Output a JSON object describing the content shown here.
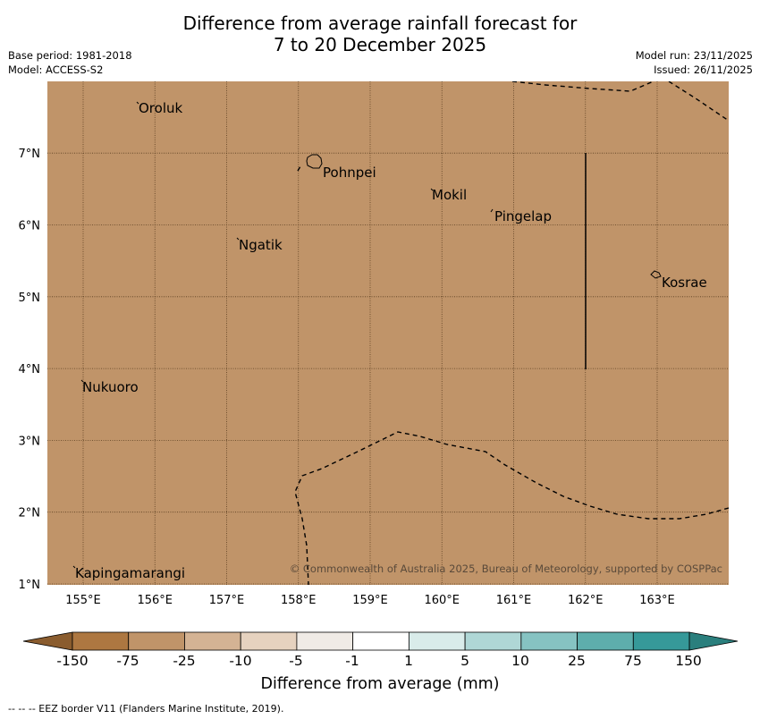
{
  "title_line1": "Difference from average rainfall forecast for",
  "title_line2": "7 to 20 December 2025",
  "base_period": "Base period: 1981-2018",
  "model": "Model: ACCESS-S2",
  "model_run": "Model run: 23/11/2025",
  "issued": "Issued: 26/11/2025",
  "map": {
    "fill_color": "#c09469",
    "lon_ticks": [
      "155°E",
      "156°E",
      "157°E",
      "158°E",
      "159°E",
      "160°E",
      "161°E",
      "162°E",
      "163°E"
    ],
    "lat_ticks": [
      "1°N",
      "2°N",
      "3°N",
      "4°N",
      "5°N",
      "6°N",
      "7°N"
    ],
    "places": [
      "Oroluk",
      "Pohnpei",
      "Mokil",
      "Pingelap",
      "Ngatik",
      "Kosrae",
      "Nukuoro",
      "Kapingamarangi"
    ],
    "copyright": "© Commonwealth of Australia 2025, Bureau of Meteorology, supported by COSPPac"
  },
  "colorbar": {
    "labels": [
      "-150",
      "-75",
      "-25",
      "-10",
      "-5",
      "-1",
      "1",
      "5",
      "10",
      "25",
      "75",
      "150"
    ],
    "colors": [
      "#ad7741",
      "#c09469",
      "#d4b394",
      "#e6d2bf",
      "#f0ebe6",
      "#ffffff",
      "#d9ecea",
      "#afd7d6",
      "#86c3c2",
      "#5eaeac",
      "#369999"
    ],
    "under_color": "#8a5c2e",
    "over_color": "#2a7f7d",
    "title": "Difference from average (mm)"
  },
  "footnote": "-- -- -- EEZ border V11 (Flanders Marine Institute, 2019)."
}
